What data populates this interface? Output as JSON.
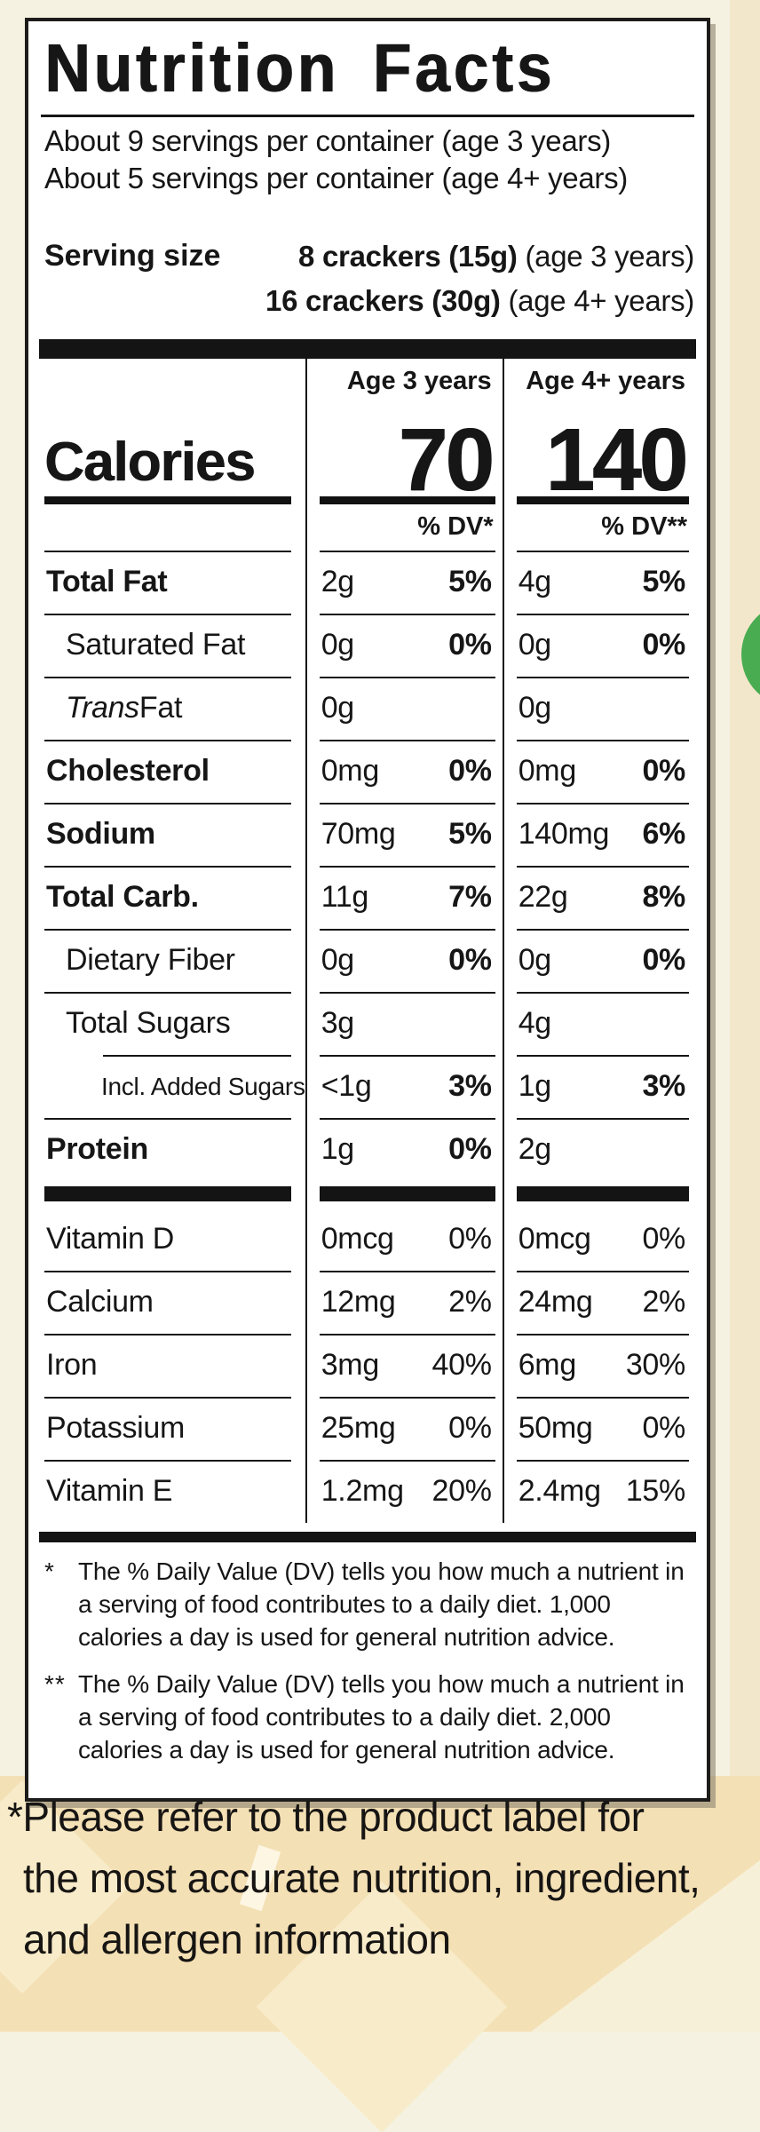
{
  "label": {
    "title": "Nutrition Facts",
    "servings_line1": "About 9 servings per container (age 3 years)",
    "servings_line2": "About 5 servings per container (age 4+ years)",
    "serving_size_label": "Serving size",
    "serving_size_rows": [
      {
        "amount": "8 crackers (15g)",
        "age_note": " (age 3 years)"
      },
      {
        "amount": "16 crackers (30g)",
        "age_note": " (age 4+ years)"
      }
    ],
    "calories_label": "Calories",
    "age_columns": [
      {
        "header": "Age 3 years",
        "calories": "70",
        "dv_header": "% DV*"
      },
      {
        "header": "Age 4+ years",
        "calories": "140",
        "dv_header": "% DV**"
      }
    ],
    "nutrient_rows": [
      {
        "name": "Total Fat",
        "a1": "2g",
        "p1": "5%",
        "a2": "4g",
        "p2": "5%"
      },
      {
        "name": "Saturated Fat",
        "a1": "0g",
        "p1": "0%",
        "a2": "0g",
        "p2": "0%"
      },
      {
        "name_italic": "Trans",
        "name": " Fat",
        "a1": "0g",
        "p1": "",
        "a2": "0g",
        "p2": ""
      },
      {
        "name": "Cholesterol",
        "a1": "0mg",
        "p1": "0%",
        "a2": "0mg",
        "p2": "0%"
      },
      {
        "name": "Sodium",
        "a1": "70mg",
        "p1": "5%",
        "a2": "140mg",
        "p2": "6%"
      },
      {
        "name": "Total Carb.",
        "a1": "11g",
        "p1": "7%",
        "a2": "22g",
        "p2": "8%"
      },
      {
        "name": "Dietary Fiber",
        "a1": "0g",
        "p1": "0%",
        "a2": "0g",
        "p2": "0%"
      },
      {
        "name": "Total Sugars",
        "a1": "3g",
        "p1": "",
        "a2": "4g",
        "p2": ""
      },
      {
        "name": "Incl. Added Sugars",
        "a1": "<1g",
        "p1": "3%",
        "a2": "1g",
        "p2": "3%"
      },
      {
        "name": "Protein",
        "a1": "1g",
        "p1": "0%",
        "a2": "2g",
        "p2": ""
      }
    ],
    "vitamin_rows": [
      {
        "name": "Vitamin D",
        "a1": "0mcg",
        "p1": "0%",
        "a2": "0mcg",
        "p2": "0%"
      },
      {
        "name": "Calcium",
        "a1": "12mg",
        "p1": "2%",
        "a2": "24mg",
        "p2": "2%"
      },
      {
        "name": "Iron",
        "a1": "3mg",
        "p1": "40%",
        "a2": "6mg",
        "p2": "30%"
      },
      {
        "name": "Potassium",
        "a1": "25mg",
        "p1": "0%",
        "a2": "50mg",
        "p2": "0%"
      },
      {
        "name": "Vitamin E",
        "a1": "1.2mg",
        "p1": "20%",
        "a2": "2.4mg",
        "p2": "15%"
      }
    ],
    "footnotes": [
      {
        "marker": "*",
        "text": "The % Daily Value (DV) tells you how much a nutrient in a serving of food contributes to a daily diet. 1,000 calories a day is used for general nutrition advice."
      },
      {
        "marker": "**",
        "text": "The % Daily Value (DV) tells you how much a nutrient in a serving of food contributes to a daily diet. 2,000 calories a day is used for general nutrition advice."
      }
    ]
  },
  "disclaimer": {
    "line1": "*Please refer to the product label for",
    "line2": "the most accurate nutrition, ingredient,",
    "line3": "and allergen information"
  },
  "colors": {
    "page_cream": "#f6f2e1",
    "side_tan": "#f3e7cb",
    "bottom_tan": "#f4e0b5",
    "bottom_light": "#f7f0d9",
    "label_ink": "#161616",
    "green_accent": "#49ac51"
  }
}
